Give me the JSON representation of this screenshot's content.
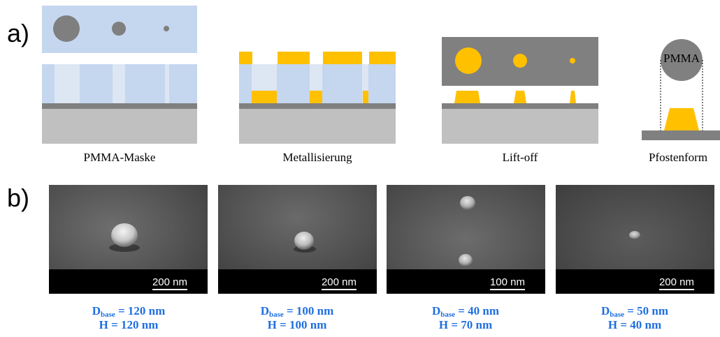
{
  "panel_a": {
    "label": "a)",
    "steps": [
      {
        "caption": "PMMA-Maske"
      },
      {
        "caption": "Metallisierung"
      },
      {
        "caption": "Lift-off"
      },
      {
        "caption": "Pfostenform"
      }
    ],
    "pmma_label": "PMMA"
  },
  "panel_b": {
    "label": "b)",
    "images": [
      {
        "scale": "200 nm",
        "d_prefix": "D",
        "d_sub": "base",
        "d_value": " = 120 nm",
        "height": "H = 120 nm"
      },
      {
        "scale": "200 nm",
        "d_prefix": "D",
        "d_sub": "base",
        "d_value": " = 100 nm",
        "height": "H = 100 nm"
      },
      {
        "scale": "100 nm",
        "d_prefix": "D",
        "d_sub": "base",
        "d_value": " = 40 nm",
        "height": "H = 70 nm"
      },
      {
        "scale": "200 nm",
        "d_prefix": "D",
        "d_sub": "base",
        "d_value": " = 50 nm",
        "height": "H = 40 nm"
      }
    ]
  },
  "colors": {
    "pmma": "#c5d6ef",
    "gold": "#ffc000",
    "grey_layer": "#808080",
    "substrate": "#c0c0c0",
    "measure_text": "#1f6fe0"
  }
}
